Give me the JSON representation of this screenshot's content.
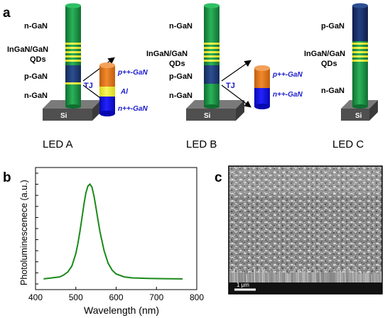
{
  "panel_letters": {
    "a": "a",
    "b": "b",
    "c": "c"
  },
  "panel_a": {
    "led_a": {
      "caption": "LED A",
      "labels": {
        "n_gan": "n-GaN",
        "qds_line1": "InGaN/GaN",
        "qds_line2": "QDs",
        "p_gan": "p-GaN",
        "n_gan_bottom": "n-GaN",
        "substrate": "Si",
        "tj": "TJ"
      },
      "tj_stack": {
        "top": "p++-GaN",
        "middle": "Al",
        "bottom": "n++-GaN"
      }
    },
    "led_b": {
      "caption": "LED B",
      "labels": {
        "n_gan": "n-GaN",
        "qds_line1": "InGaN/GaN",
        "qds_line2": "QDs",
        "p_gan": "p-GaN",
        "n_gan_bottom": "n-GaN",
        "substrate": "Si",
        "tj": "TJ"
      },
      "tj_stack": {
        "top": "p++-GaN",
        "bottom": "n++-GaN"
      }
    },
    "led_c": {
      "caption": "LED C",
      "labels": {
        "p_gan": "p-GaN",
        "qds_line1": "InGaN/GaN",
        "qds_line2": "QDs",
        "n_gan": "n-GaN",
        "substrate": "Si"
      }
    },
    "colors": {
      "nanowire_green": "#1a9a45",
      "qd_yellow": "#e6e62e",
      "p_gan_navy": "#1f3e78",
      "tj_orange": "#e9791f",
      "tj_blue": "#1010e8",
      "al_yellow": "#f2f22a",
      "label_blue": "#1a1acc",
      "substrate_gray": "#5a5a5a"
    }
  },
  "chart_data": {
    "type": "line",
    "title": "",
    "xlabel": "Wavelength (nm)",
    "ylabel": "Photoluminescenece (a.u.)",
    "xlim": [
      400,
      800
    ],
    "ylim": [
      0,
      1.0
    ],
    "xticks": [
      400,
      500,
      600,
      700,
      800
    ],
    "grid": false,
    "series": [
      {
        "color": "#1a8a1a",
        "x": [
          420,
          440,
          460,
          470,
          480,
          490,
          500,
          505,
          510,
          515,
          520,
          525,
          530,
          535,
          540,
          545,
          550,
          555,
          560,
          570,
          580,
          590,
          600,
          620,
          640,
          680,
          720,
          765
        ],
        "y": [
          0.01,
          0.02,
          0.03,
          0.05,
          0.08,
          0.14,
          0.27,
          0.37,
          0.49,
          0.63,
          0.77,
          0.89,
          0.96,
          0.98,
          0.95,
          0.86,
          0.74,
          0.61,
          0.49,
          0.3,
          0.17,
          0.1,
          0.06,
          0.03,
          0.02,
          0.015,
          0.012,
          0.01
        ]
      }
    ]
  },
  "panel_c": {
    "scale_bar_label": "1 μm"
  }
}
